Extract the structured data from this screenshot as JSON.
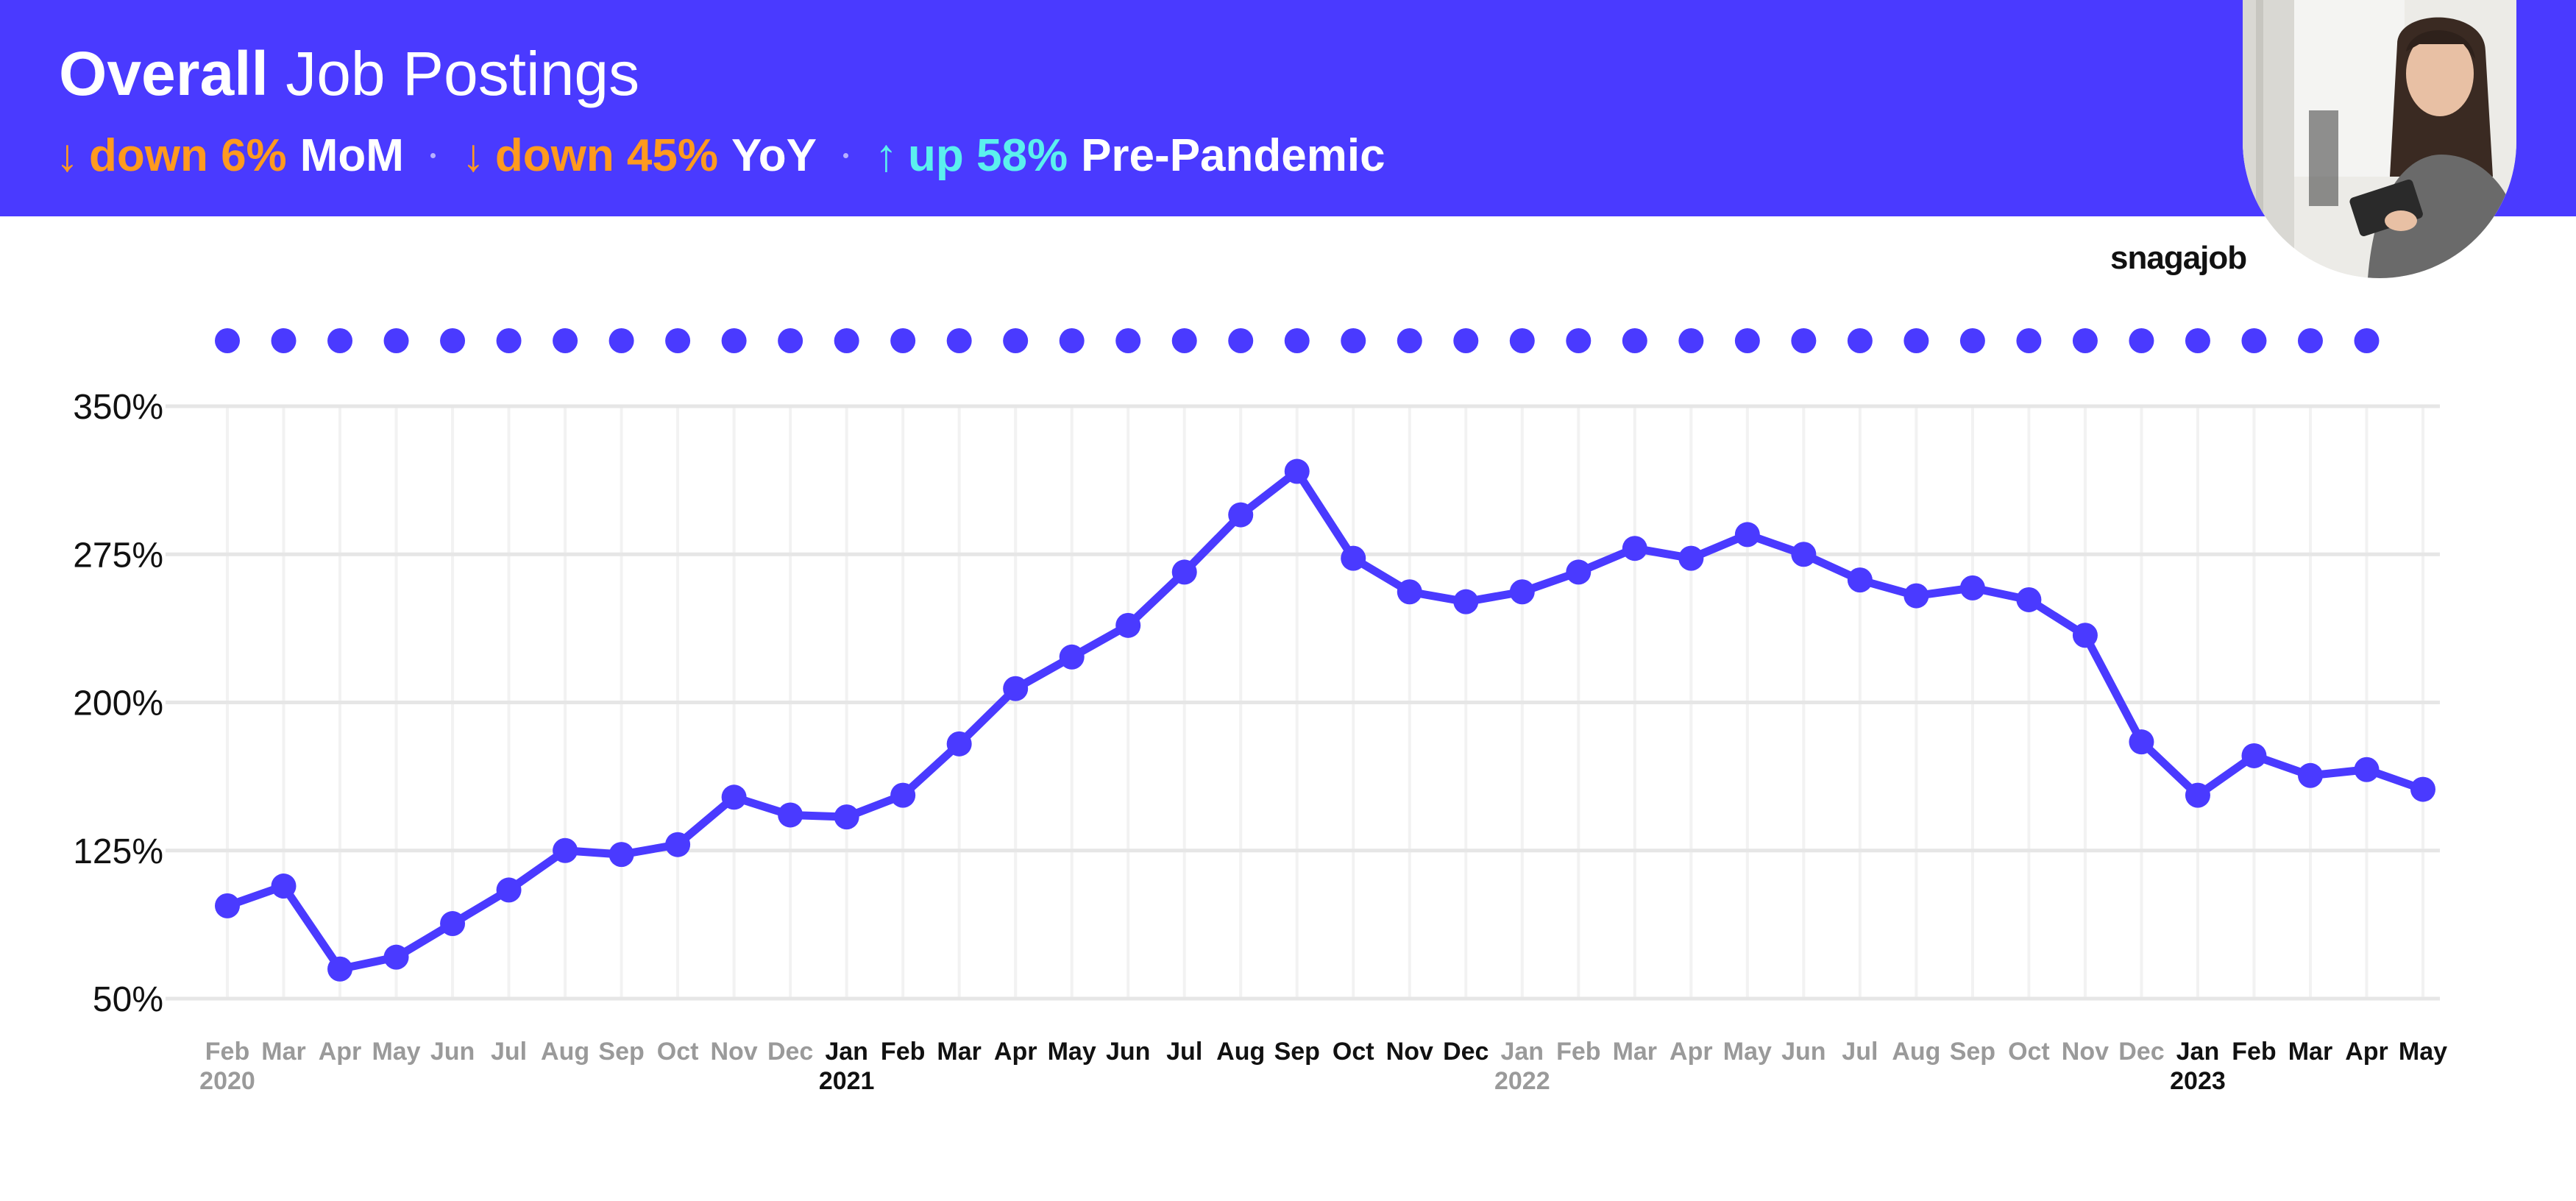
{
  "header": {
    "title_bold": "Overall",
    "title_rest": "Job Postings",
    "stats": [
      {
        "arrow_icon": "arrow-down-icon",
        "arrow": "↓",
        "text": "down 6%",
        "label": "MoM",
        "direction": "down"
      },
      {
        "arrow_icon": "arrow-down-icon",
        "arrow": "↓",
        "text": "down 45%",
        "label": "YoY",
        "direction": "down"
      },
      {
        "arrow_icon": "arrow-up-icon",
        "arrow": "↑",
        "text": "up 58%",
        "label": "Pre-Pandemic",
        "direction": "up"
      }
    ]
  },
  "brand": {
    "logo_text": "snagajob"
  },
  "colors": {
    "brand": "#4A3AFF",
    "line": "#4A3AFF",
    "down": "#FF9A1F",
    "up": "#5BF0EE",
    "grid": "#e6e6e6",
    "tick_muted": "#9a9a9a",
    "tick_strong": "#111111"
  },
  "chart_data": {
    "type": "line",
    "title": "",
    "xlabel": "",
    "ylabel": "",
    "ylim": [
      50,
      350
    ],
    "yticks": [
      50,
      125,
      200,
      275,
      350
    ],
    "ytick_labels": [
      "50%",
      "125%",
      "200%",
      "275%",
      "350%"
    ],
    "grid": true,
    "legend": "none",
    "x": [
      {
        "month": "Feb",
        "year": "2020",
        "highlight": false
      },
      {
        "month": "Mar",
        "year": "",
        "highlight": false
      },
      {
        "month": "Apr",
        "year": "",
        "highlight": false
      },
      {
        "month": "May",
        "year": "",
        "highlight": false
      },
      {
        "month": "Jun",
        "year": "",
        "highlight": false
      },
      {
        "month": "Jul",
        "year": "",
        "highlight": false
      },
      {
        "month": "Aug",
        "year": "",
        "highlight": false
      },
      {
        "month": "Sep",
        "year": "",
        "highlight": false
      },
      {
        "month": "Oct",
        "year": "",
        "highlight": false
      },
      {
        "month": "Nov",
        "year": "",
        "highlight": false
      },
      {
        "month": "Dec",
        "year": "",
        "highlight": false
      },
      {
        "month": "Jan",
        "year": "2021",
        "highlight": true
      },
      {
        "month": "Feb",
        "year": "",
        "highlight": true
      },
      {
        "month": "Mar",
        "year": "",
        "highlight": true
      },
      {
        "month": "Apr",
        "year": "",
        "highlight": true
      },
      {
        "month": "May",
        "year": "",
        "highlight": true
      },
      {
        "month": "Jun",
        "year": "",
        "highlight": true
      },
      {
        "month": "Jul",
        "year": "",
        "highlight": true
      },
      {
        "month": "Aug",
        "year": "",
        "highlight": true
      },
      {
        "month": "Sep",
        "year": "",
        "highlight": true
      },
      {
        "month": "Oct",
        "year": "",
        "highlight": true
      },
      {
        "month": "Nov",
        "year": "",
        "highlight": true
      },
      {
        "month": "Dec",
        "year": "",
        "highlight": true
      },
      {
        "month": "Jan",
        "year": "2022",
        "highlight": false
      },
      {
        "month": "Feb",
        "year": "",
        "highlight": false
      },
      {
        "month": "Mar",
        "year": "",
        "highlight": false
      },
      {
        "month": "Apr",
        "year": "",
        "highlight": false
      },
      {
        "month": "May",
        "year": "",
        "highlight": false
      },
      {
        "month": "Jun",
        "year": "",
        "highlight": false
      },
      {
        "month": "Jul",
        "year": "",
        "highlight": false
      },
      {
        "month": "Aug",
        "year": "",
        "highlight": false
      },
      {
        "month": "Sep",
        "year": "",
        "highlight": false
      },
      {
        "month": "Oct",
        "year": "",
        "highlight": false
      },
      {
        "month": "Nov",
        "year": "",
        "highlight": false
      },
      {
        "month": "Dec",
        "year": "",
        "highlight": false
      },
      {
        "month": "Jan",
        "year": "2023",
        "highlight": true
      },
      {
        "month": "Feb",
        "year": "",
        "highlight": true
      },
      {
        "month": "Mar",
        "year": "",
        "highlight": true
      },
      {
        "month": "Apr",
        "year": "",
        "highlight": true
      },
      {
        "month": "May",
        "year": "",
        "highlight": true
      }
    ],
    "series": [
      {
        "values": [
          97,
          107,
          65,
          71,
          88,
          105,
          125,
          123,
          128,
          152,
          143,
          142,
          153,
          179,
          207,
          223,
          239,
          266,
          295,
          317,
          273,
          256,
          251,
          256,
          266,
          278,
          273,
          285,
          275,
          262,
          254,
          258,
          252,
          234,
          180,
          153,
          173,
          163,
          166,
          156
        ]
      }
    ]
  }
}
